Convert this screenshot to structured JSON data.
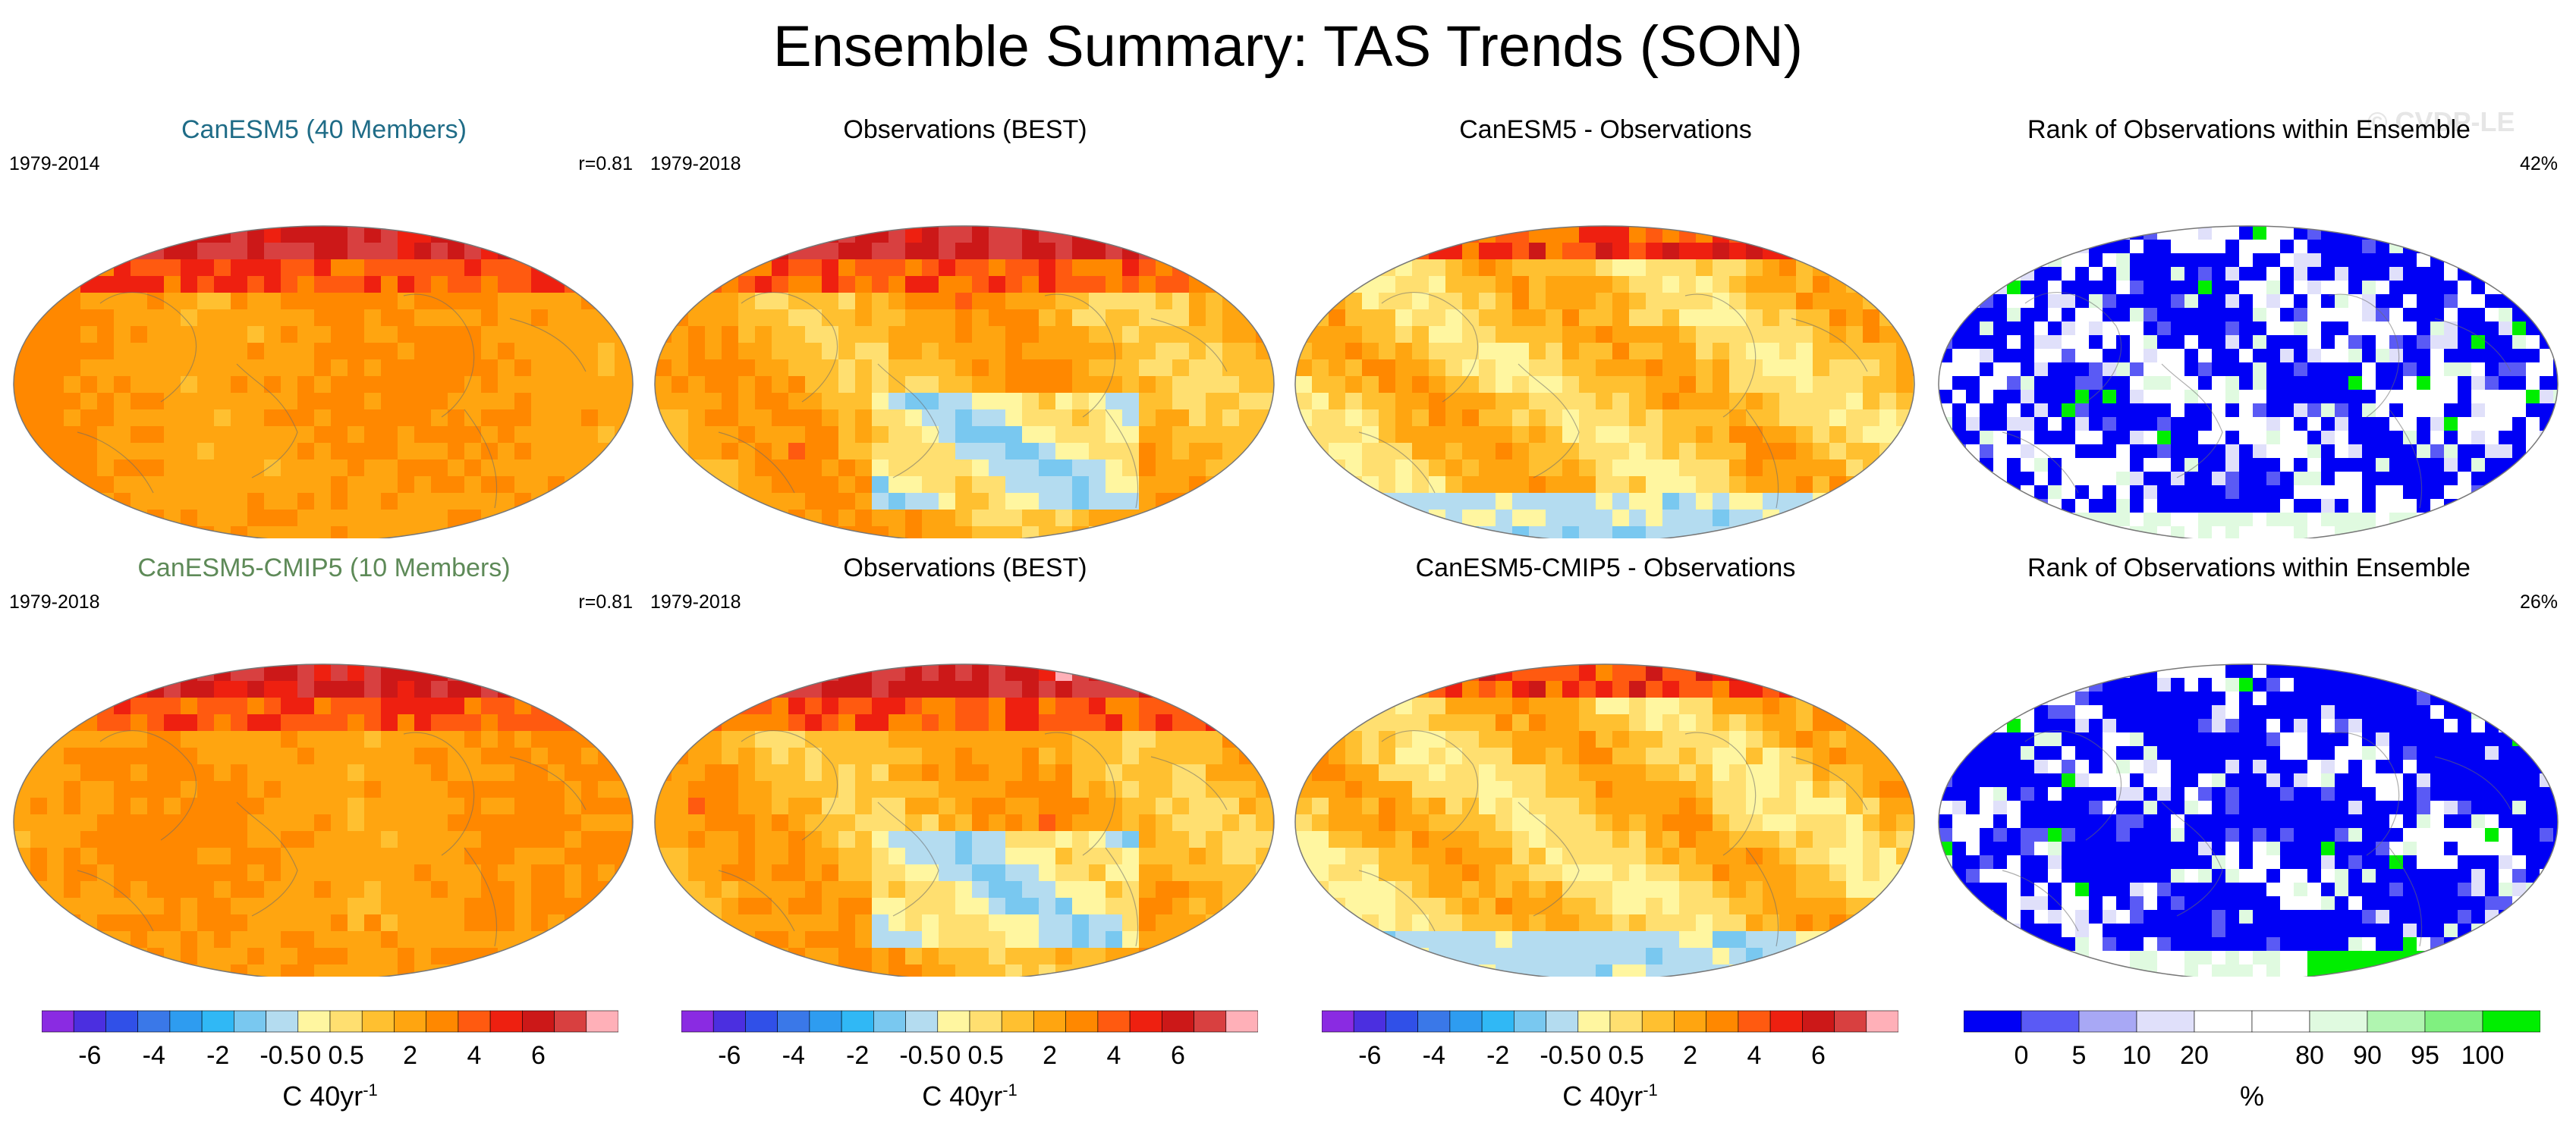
{
  "title": "Ensemble Summary: TAS Trends (SON)",
  "watermark": "© CVDP-LE",
  "chart_data": {
    "type": "heatmap",
    "panels": [
      {
        "id": "p1",
        "title": "CanESM5 (40 Members)",
        "title_color": "#1f6c87",
        "period": "1979-2014",
        "corr": "r=0.81",
        "kind": "trend",
        "variant": "model"
      },
      {
        "id": "p2",
        "title": "Observations (BEST)",
        "title_color": "#000000",
        "period": "1979-2018",
        "corr": "",
        "kind": "trend",
        "variant": "obs"
      },
      {
        "id": "p3",
        "title": "CanESM5 - Observations",
        "title_color": "#000000",
        "period": "",
        "corr": "",
        "kind": "trend",
        "variant": "diff"
      },
      {
        "id": "p4",
        "title": "Rank of Observations within Ensemble",
        "title_color": "#000000",
        "period": "",
        "corr": "42%",
        "kind": "rank",
        "variant": "rank1"
      },
      {
        "id": "p5",
        "title": "CanESM5-CMIP5 (10 Members)",
        "title_color": "#5e8a58",
        "period": "1979-2018",
        "corr": "r=0.81",
        "kind": "trend",
        "variant": "model"
      },
      {
        "id": "p6",
        "title": "Observations (BEST)",
        "title_color": "#000000",
        "period": "1979-2018",
        "corr": "",
        "kind": "trend",
        "variant": "obs"
      },
      {
        "id": "p7",
        "title": "CanESM5-CMIP5 - Observations",
        "title_color": "#000000",
        "period": "",
        "corr": "",
        "kind": "trend",
        "variant": "diff"
      },
      {
        "id": "p8",
        "title": "Rank of Observations within Ensemble",
        "title_color": "#000000",
        "period": "",
        "corr": "26%",
        "kind": "rank",
        "variant": "rank2"
      }
    ],
    "trend_colorbar": {
      "colors": [
        "#8a2be2",
        "#4b2fe0",
        "#3050e8",
        "#3a78e8",
        "#2e9cf0",
        "#30b8f5",
        "#79c8f0",
        "#b4dcf0",
        "#fff6a0",
        "#ffdf70",
        "#ffc030",
        "#ffa510",
        "#ff8800",
        "#ff5a10",
        "#ee2010",
        "#cc1818",
        "#d84040",
        "#ffb0b8"
      ],
      "tick_labels": [
        "-6",
        "-4",
        "-2",
        "-0.5",
        "0",
        "0.5",
        "2",
        "4",
        "6"
      ],
      "tick_positions": [
        1.5,
        3.5,
        5.5,
        7.5,
        8.5,
        9.5,
        11.5,
        13.5,
        15.5
      ],
      "units": "C 40yr",
      "units_exp": "-1"
    },
    "rank_colorbar": {
      "colors": [
        "#0000f5",
        "#5a5af5",
        "#a8a8f5",
        "#e0e0fa",
        "#ffffff",
        "#ffffff",
        "#e0fae0",
        "#b0f5b0",
        "#80f080",
        "#00ee00"
      ],
      "tick_labels": [
        "0",
        "5",
        "10",
        "20",
        "80",
        "90",
        "95",
        "100"
      ],
      "tick_positions": [
        1,
        2,
        3,
        4,
        6,
        7,
        8,
        9
      ],
      "units": "%"
    }
  }
}
